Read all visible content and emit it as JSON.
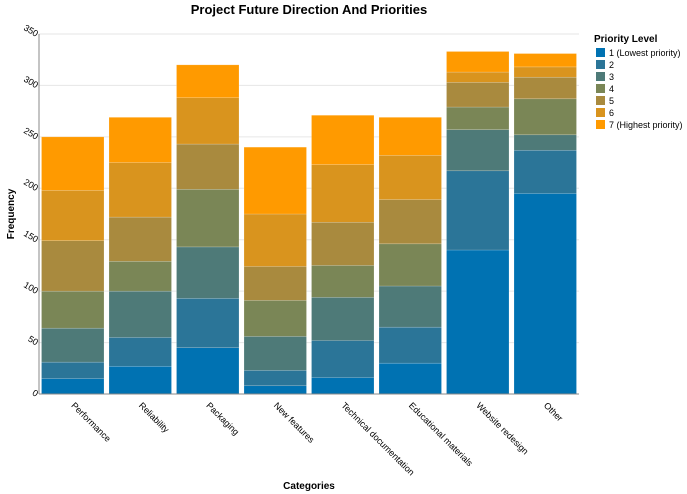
{
  "chart_data": {
    "type": "bar",
    "stacked": true,
    "title": "Project Future Direction And Priorities",
    "xlabel": "Categories",
    "ylabel": "Frequency",
    "ylim": [
      0,
      350
    ],
    "yticks": [
      0,
      50,
      100,
      150,
      200,
      250,
      300,
      350
    ],
    "grid": true,
    "legend_title": "Priority Level",
    "legend_position": "right",
    "categories": [
      "Performance",
      "Reliability",
      "Packaging",
      "New features",
      "Technical documentation",
      "Educational materials",
      "Website redesign",
      "Other"
    ],
    "series": [
      {
        "name": "1 (Lowest priority)",
        "color": "#0072B2",
        "values": [
          15,
          27,
          45,
          8,
          16,
          30,
          140,
          195
        ]
      },
      {
        "name": "2",
        "color": "#2B7598",
        "values": [
          16,
          28,
          48,
          15,
          36,
          35,
          77,
          42
        ]
      },
      {
        "name": "3",
        "color": "#4E7A78",
        "values": [
          33,
          45,
          50,
          33,
          42,
          40,
          40,
          15
        ]
      },
      {
        "name": "4",
        "color": "#7A8656",
        "values": [
          36,
          29,
          56,
          35,
          31,
          41,
          22,
          35
        ]
      },
      {
        "name": "5",
        "color": "#A98A3E",
        "values": [
          49,
          43,
          44,
          33,
          42,
          43,
          24,
          21
        ]
      },
      {
        "name": "6",
        "color": "#D9941E",
        "values": [
          49,
          53,
          45,
          51,
          56,
          43,
          10,
          10
        ]
      },
      {
        "name": "7 (Highest priority)",
        "color": "#FF9A00",
        "values": [
          52,
          44,
          32,
          65,
          48,
          37,
          20,
          13
        ]
      }
    ]
  }
}
